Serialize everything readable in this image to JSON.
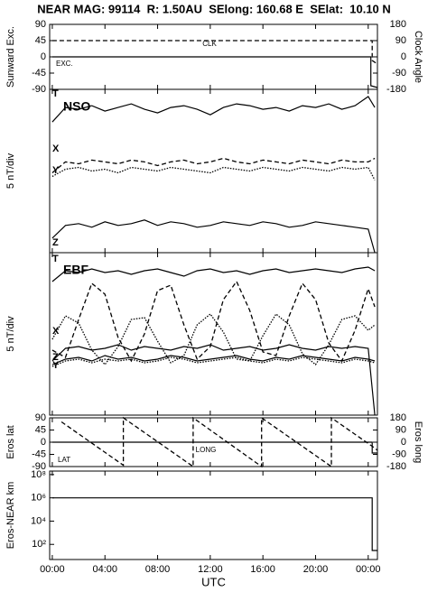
{
  "chart_data": [
    {
      "type": "line",
      "title": "NEAR MAG: 99114  R: 1.50AU  SElong: 160.68 E  SElat:  10.10 N",
      "ylabel": "Sunward Exc.",
      "y2label": "Clock Angle",
      "ylim": [
        -90,
        90
      ],
      "yticks": [
        90,
        45,
        0,
        -45,
        -90
      ],
      "y2lim": [
        -180,
        180
      ],
      "y2ticks": [
        180,
        90,
        0,
        -90,
        -180
      ],
      "series": [
        {
          "name": "CLK",
          "axis": "y2",
          "color": "#000000",
          "dash": "dashed",
          "x": [
            0,
            24.3,
            24.3,
            24.7
          ],
          "values": [
            90,
            90,
            -20,
            -40
          ]
        },
        {
          "name": "EXC.",
          "color": "#000000",
          "dash": "solid",
          "x": [
            0,
            24.2,
            24.2,
            24.7
          ],
          "values": [
            0,
            0,
            -80,
            -85
          ]
        }
      ]
    },
    {
      "type": "line",
      "label": "NSO",
      "ylabel": "5 nT/div",
      "ylim": [
        0,
        90
      ],
      "x": [
        0,
        1,
        2,
        3,
        4,
        5,
        6,
        7,
        8,
        9,
        10,
        11,
        12,
        13,
        14,
        15,
        16,
        17,
        18,
        19,
        20,
        21,
        22,
        23,
        24,
        24.5
      ],
      "series": [
        {
          "name": "T",
          "color": "#000000",
          "dash": "solid",
          "values": [
            72,
            80,
            79,
            81,
            78,
            80,
            82,
            79,
            77,
            80,
            81,
            79,
            76,
            80,
            82,
            81,
            79,
            80,
            78,
            81,
            80,
            82,
            79,
            81,
            86,
            80
          ]
        },
        {
          "name": "X",
          "color": "#000000",
          "dash": "dashed",
          "values": [
            44,
            50,
            49,
            51,
            50,
            49,
            51,
            50,
            48,
            50,
            51,
            49,
            50,
            52,
            50,
            49,
            51,
            50,
            49,
            51,
            50,
            49,
            51,
            50,
            50,
            52
          ]
        },
        {
          "name": "Y",
          "color": "#000000",
          "dash": "dotted",
          "values": [
            42,
            46,
            47,
            45,
            46,
            44,
            47,
            46,
            45,
            47,
            46,
            45,
            44,
            47,
            46,
            45,
            47,
            46,
            45,
            47,
            46,
            45,
            47,
            46,
            47,
            40
          ]
        },
        {
          "name": "Z",
          "color": "#000000",
          "dash": "solid",
          "values": [
            8,
            15,
            16,
            14,
            17,
            15,
            16,
            18,
            15,
            17,
            16,
            14,
            15,
            17,
            16,
            15,
            17,
            16,
            14,
            15,
            17,
            16,
            15,
            14,
            13,
            0
          ]
        }
      ]
    },
    {
      "type": "line",
      "label": "EBF",
      "ylabel": "5 nT/div",
      "ylim": [
        0,
        90
      ],
      "x": [
        0,
        1,
        2,
        3,
        4,
        5,
        6,
        7,
        8,
        9,
        10,
        11,
        12,
        13,
        14,
        15,
        16,
        17,
        18,
        19,
        20,
        21,
        22,
        23,
        24,
        24.5
      ],
      "series": [
        {
          "name": "T",
          "color": "#000000",
          "dash": "solid",
          "values": [
            74,
            80,
            79,
            81,
            79,
            80,
            78,
            80,
            81,
            79,
            77,
            80,
            81,
            79,
            80,
            78,
            80,
            81,
            79,
            80,
            81,
            80,
            79,
            81,
            82,
            80
          ]
        },
        {
          "color": "#000000",
          "dash": "dashed",
          "values": [
            36,
            32,
            53,
            73,
            67,
            43,
            30,
            45,
            69,
            72,
            50,
            31,
            38,
            64,
            74,
            58,
            35,
            33,
            55,
            73,
            64,
            40,
            30,
            47,
            70,
            60
          ]
        },
        {
          "color": "#000000",
          "dash": "dotted",
          "values": [
            42,
            55,
            51,
            36,
            28,
            38,
            53,
            54,
            41,
            29,
            33,
            50,
            56,
            46,
            31,
            30,
            44,
            56,
            50,
            34,
            28,
            39,
            53,
            55,
            47,
            50
          ]
        },
        {
          "name": "X",
          "color": "#000000",
          "dash": "solid",
          "values": [
            30,
            37,
            38,
            36,
            37,
            39,
            36,
            38,
            37,
            36,
            38,
            37,
            39,
            36,
            37,
            38,
            36,
            37,
            39,
            37,
            36,
            38,
            37,
            38,
            37,
            0
          ]
        },
        {
          "name": "Z",
          "color": "#000000",
          "dash": "solid",
          "values": [
            28,
            31,
            32,
            30,
            33,
            31,
            32,
            30,
            31,
            33,
            32,
            30,
            31,
            32,
            33,
            31,
            30,
            32,
            31,
            33,
            32,
            31,
            30,
            32,
            31,
            30
          ]
        },
        {
          "name": "Y",
          "color": "#000000",
          "dash": "dotted",
          "values": [
            27,
            30,
            31,
            29,
            31,
            30,
            31,
            29,
            30,
            32,
            31,
            29,
            30,
            31,
            32,
            30,
            29,
            31,
            30,
            32,
            31,
            30,
            29,
            31,
            30,
            29
          ]
        }
      ]
    },
    {
      "type": "line",
      "ylabel": "Eros lat",
      "y2label": "Eros long",
      "ylim": [
        -90,
        90
      ],
      "yticks": [
        90,
        45,
        0,
        -45,
        -90
      ],
      "y2lim": [
        -180,
        180
      ],
      "y2ticks": [
        180,
        90,
        0,
        -90,
        -180
      ],
      "series": [
        {
          "name": "LONG",
          "axis": "y2",
          "color": "#000000",
          "dash": "dashed",
          "x": [
            0.7,
            5.4,
            5.4,
            10.7,
            10.7,
            15.9,
            15.9,
            21.2,
            21.2,
            24.3,
            24.7
          ],
          "values": [
            150,
            -170,
            180,
            -180,
            180,
            -180,
            180,
            -180,
            180,
            -30,
            -60
          ]
        },
        {
          "name": "LAT",
          "color": "#000000",
          "dash": "solid",
          "x": [
            0,
            24.3,
            24.3,
            24.7
          ],
          "values": [
            0,
            0,
            -40,
            -40
          ]
        }
      ]
    },
    {
      "type": "line",
      "ylabel": "Eros-NEAR km",
      "xlabel": "UTC",
      "log": true,
      "ylim": [
        5,
        200000000
      ],
      "yticks": [
        {
          "value": 100000000,
          "label": "10⁸"
        },
        {
          "value": 1000000,
          "label": "10⁶"
        },
        {
          "value": 10000,
          "label": "10⁴"
        },
        {
          "value": 100,
          "label": "10²"
        }
      ],
      "xlim": [
        -0.2,
        24.7
      ],
      "xticks": [
        {
          "value": 0,
          "label": "00:00"
        },
        {
          "value": 4,
          "label": "04:00"
        },
        {
          "value": 8,
          "label": "08:00"
        },
        {
          "value": 12,
          "label": "12:00"
        },
        {
          "value": 16,
          "label": "16:00"
        },
        {
          "value": 20,
          "label": "20:00"
        },
        {
          "value": 24,
          "label": "00:00"
        }
      ],
      "series": [
        {
          "color": "#000000",
          "dash": "solid",
          "x": [
            0,
            24.3,
            24.3,
            24.7
          ],
          "values": [
            1000000,
            1000000,
            30,
            30
          ]
        }
      ]
    }
  ]
}
